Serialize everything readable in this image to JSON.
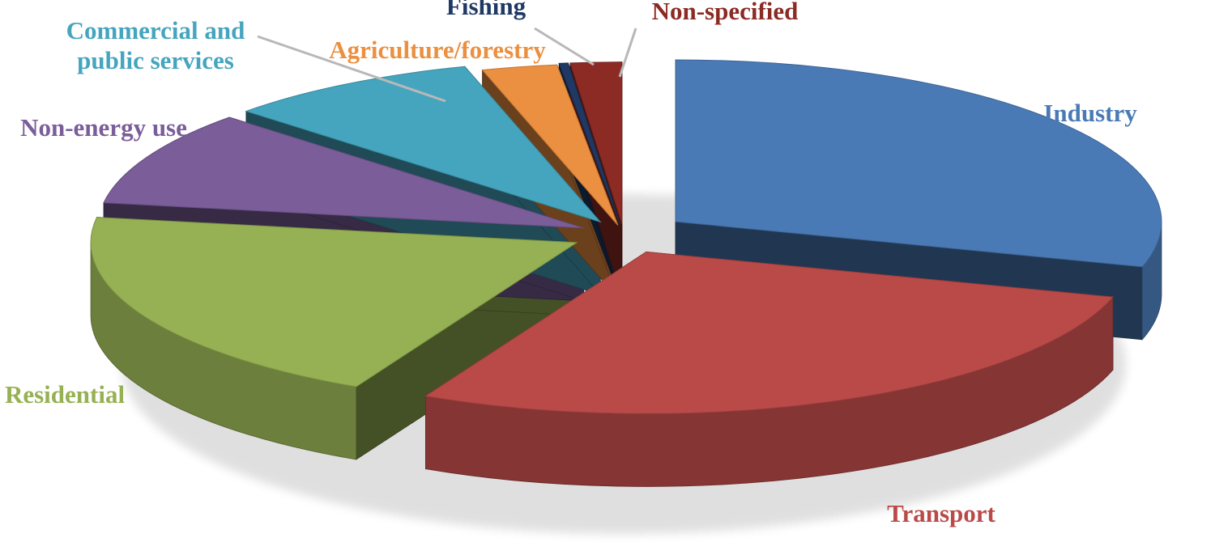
{
  "chart_data": {
    "type": "pie",
    "categories": [
      "Industry",
      "Transport",
      "Residential",
      "Non-energy use",
      "Commercial and public services",
      "Agriculture/forestry",
      "Fishing",
      "Non-specified"
    ],
    "values": [
      29.5,
      28.0,
      20.0,
      9.5,
      8.5,
      2.5,
      0.3,
      1.7
    ],
    "unit": "%",
    "colors": [
      "#4A7AB5",
      "#B94A48",
      "#96B153",
      "#7A5D99",
      "#45A5BE",
      "#EB8F40",
      "#1F3964",
      "#8B2B24"
    ],
    "label_colors": [
      "#4A7AB5",
      "#B94A48",
      "#96B153",
      "#7A5D99",
      "#45A5BE",
      "#EB8F40",
      "#1F3964",
      "#8B2B24"
    ],
    "legend": "none (direct labels)",
    "style": "3d-exploded",
    "title": "",
    "xlabel": "",
    "ylabel": ""
  }
}
